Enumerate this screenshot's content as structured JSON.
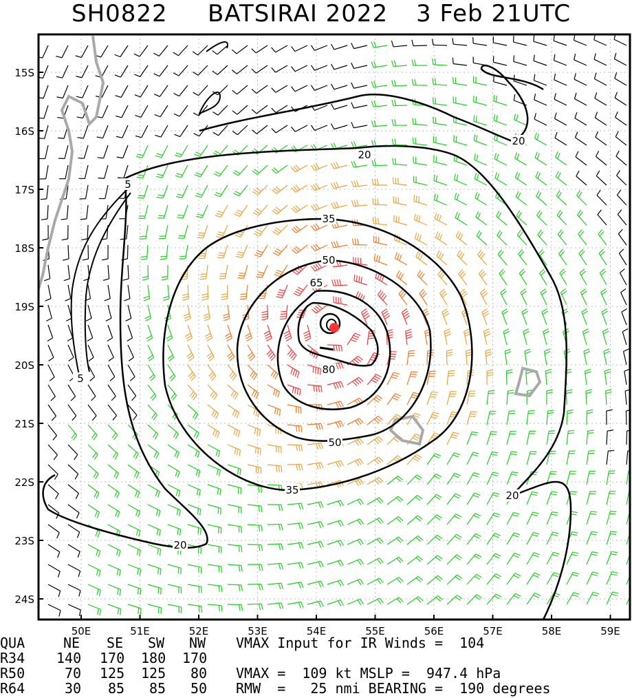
{
  "title": {
    "storm_id": "SH0822",
    "storm_name_year": "BATSIRAI 2022",
    "datetime": "3 Feb 21UTC"
  },
  "map": {
    "lon_labels": [
      "50E",
      "51E",
      "52E",
      "53E",
      "54E",
      "55E",
      "56E",
      "57E",
      "58E",
      "59E"
    ],
    "lat_labels": [
      "15S",
      "16S",
      "17S",
      "18S",
      "19S",
      "20S",
      "21S",
      "22S",
      "23S",
      "24S"
    ],
    "contour_labels": [
      "5",
      "5",
      "20",
      "20",
      "20",
      "20",
      "35",
      "35",
      "50",
      "50",
      "65",
      "80"
    ],
    "colors": {
      "coast": "#a9a9a9",
      "barb_default": "#000000",
      "barb_34kt": "#22cc22",
      "barb_50kt": "#e8a33a",
      "barb_64kt": "#ee7a22",
      "barb_80kt": "#ee3b3b",
      "center_marker": "#ff3333"
    }
  },
  "table": {
    "header": {
      "c0": "QUA",
      "ne": "NE",
      "se": "SE",
      "sw": "SW",
      "nw": "NW",
      "info": "VMAX Input for IR Winds =  104"
    },
    "r34": {
      "c0": "R34",
      "ne": "140",
      "se": "170",
      "sw": "180",
      "nw": "170",
      "info": ""
    },
    "r50": {
      "c0": "R50",
      "ne": "70",
      "se": "125",
      "sw": "125",
      "nw": "80",
      "info": "VMAX =  109 kt MSLP =  947.4 hPa"
    },
    "r64": {
      "c0": "R64",
      "ne": "30",
      "se": "85",
      "sw": "85",
      "nw": "50",
      "info": "RMW  =   25 nmi BEARING =  190 degrees"
    }
  }
}
